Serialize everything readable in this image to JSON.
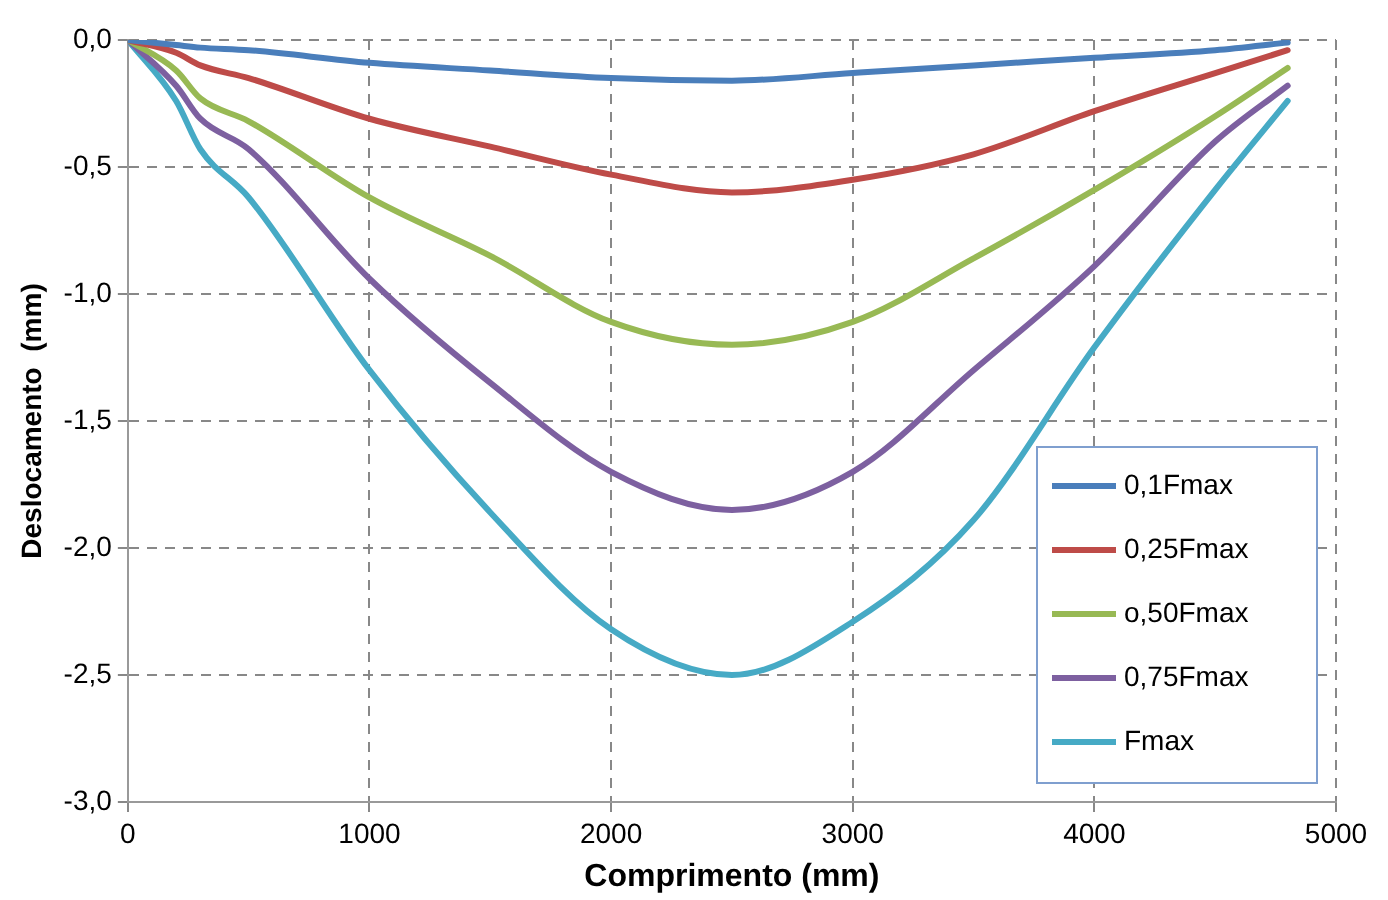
{
  "chart_data": {
    "type": "line",
    "xlabel": "Comprimento (mm)",
    "ylabel": "Deslocamento  (mm)",
    "x": [
      0,
      200,
      300,
      500,
      1000,
      1500,
      2000,
      2500,
      3000,
      3500,
      4000,
      4500,
      4800
    ],
    "series": [
      {
        "name": "0,1Fmax",
        "color": "#4a7ebb",
        "values": [
          0,
          -0.02,
          -0.03,
          -0.04,
          -0.09,
          -0.12,
          -0.15,
          -0.16,
          -0.13,
          -0.1,
          -0.07,
          -0.04,
          -0.01
        ]
      },
      {
        "name": "0,25Fmax",
        "color": "#be4b48",
        "values": [
          0,
          -0.05,
          -0.1,
          -0.15,
          -0.31,
          -0.42,
          -0.53,
          -0.6,
          -0.55,
          -0.45,
          -0.28,
          -0.13,
          -0.04
        ]
      },
      {
        "name": "o,50Fmax",
        "color": "#98b954",
        "values": [
          0,
          -0.12,
          -0.23,
          -0.32,
          -0.62,
          -0.85,
          -1.11,
          -1.2,
          -1.11,
          -0.86,
          -0.59,
          -0.3,
          -0.11
        ]
      },
      {
        "name": "0,75Fmax",
        "color": "#7d60a0",
        "values": [
          0,
          -0.18,
          -0.31,
          -0.43,
          -0.94,
          -1.35,
          -1.7,
          -1.85,
          -1.7,
          -1.3,
          -0.89,
          -0.4,
          -0.18
        ]
      },
      {
        "name": "Fmax",
        "color": "#46aac5",
        "values": [
          0,
          -0.24,
          -0.43,
          -0.62,
          -1.3,
          -1.86,
          -2.32,
          -2.5,
          -2.29,
          -1.89,
          -1.21,
          -0.59,
          -0.24
        ]
      }
    ],
    "xlim": [
      0,
      5000
    ],
    "xticks": [
      0,
      1000,
      2000,
      3000,
      4000,
      5000
    ],
    "ylim": [
      -3,
      0
    ],
    "yticks": [
      {
        "value": 0,
        "label": "0,0"
      },
      {
        "value": -0.5,
        "label": "-0,5"
      },
      {
        "value": -1,
        "label": "-1,0"
      },
      {
        "value": -1.5,
        "label": "-1,5"
      },
      {
        "value": -2,
        "label": "-2,0"
      },
      {
        "value": -2.5,
        "label": "-2,5"
      },
      {
        "value": -3,
        "label": "-3,0"
      }
    ],
    "grid": true,
    "legend": "bottom right",
    "marker": "none",
    "line_style": "solid"
  }
}
